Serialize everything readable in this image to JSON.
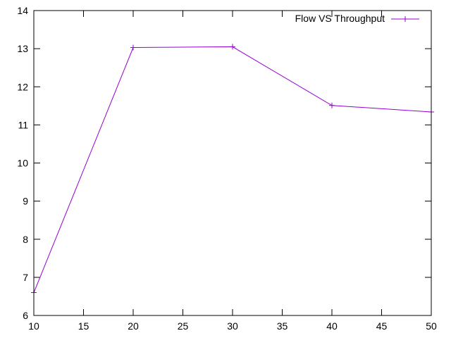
{
  "chart_data": {
    "type": "line",
    "x": [
      10,
      20,
      30,
      40,
      50
    ],
    "series": [
      {
        "name": "Flow VS Throughput",
        "values": [
          6.6,
          13.03,
          13.05,
          11.51,
          11.34
        ],
        "color": "#9400d3",
        "marker": "plus"
      }
    ],
    "xlim": [
      10,
      50
    ],
    "ylim": [
      6,
      14
    ],
    "xticks": [
      10,
      15,
      20,
      25,
      30,
      35,
      40,
      45,
      50
    ],
    "yticks": [
      6,
      7,
      8,
      9,
      10,
      11,
      12,
      13,
      14
    ],
    "grid": false,
    "legend_position": "top-right"
  }
}
